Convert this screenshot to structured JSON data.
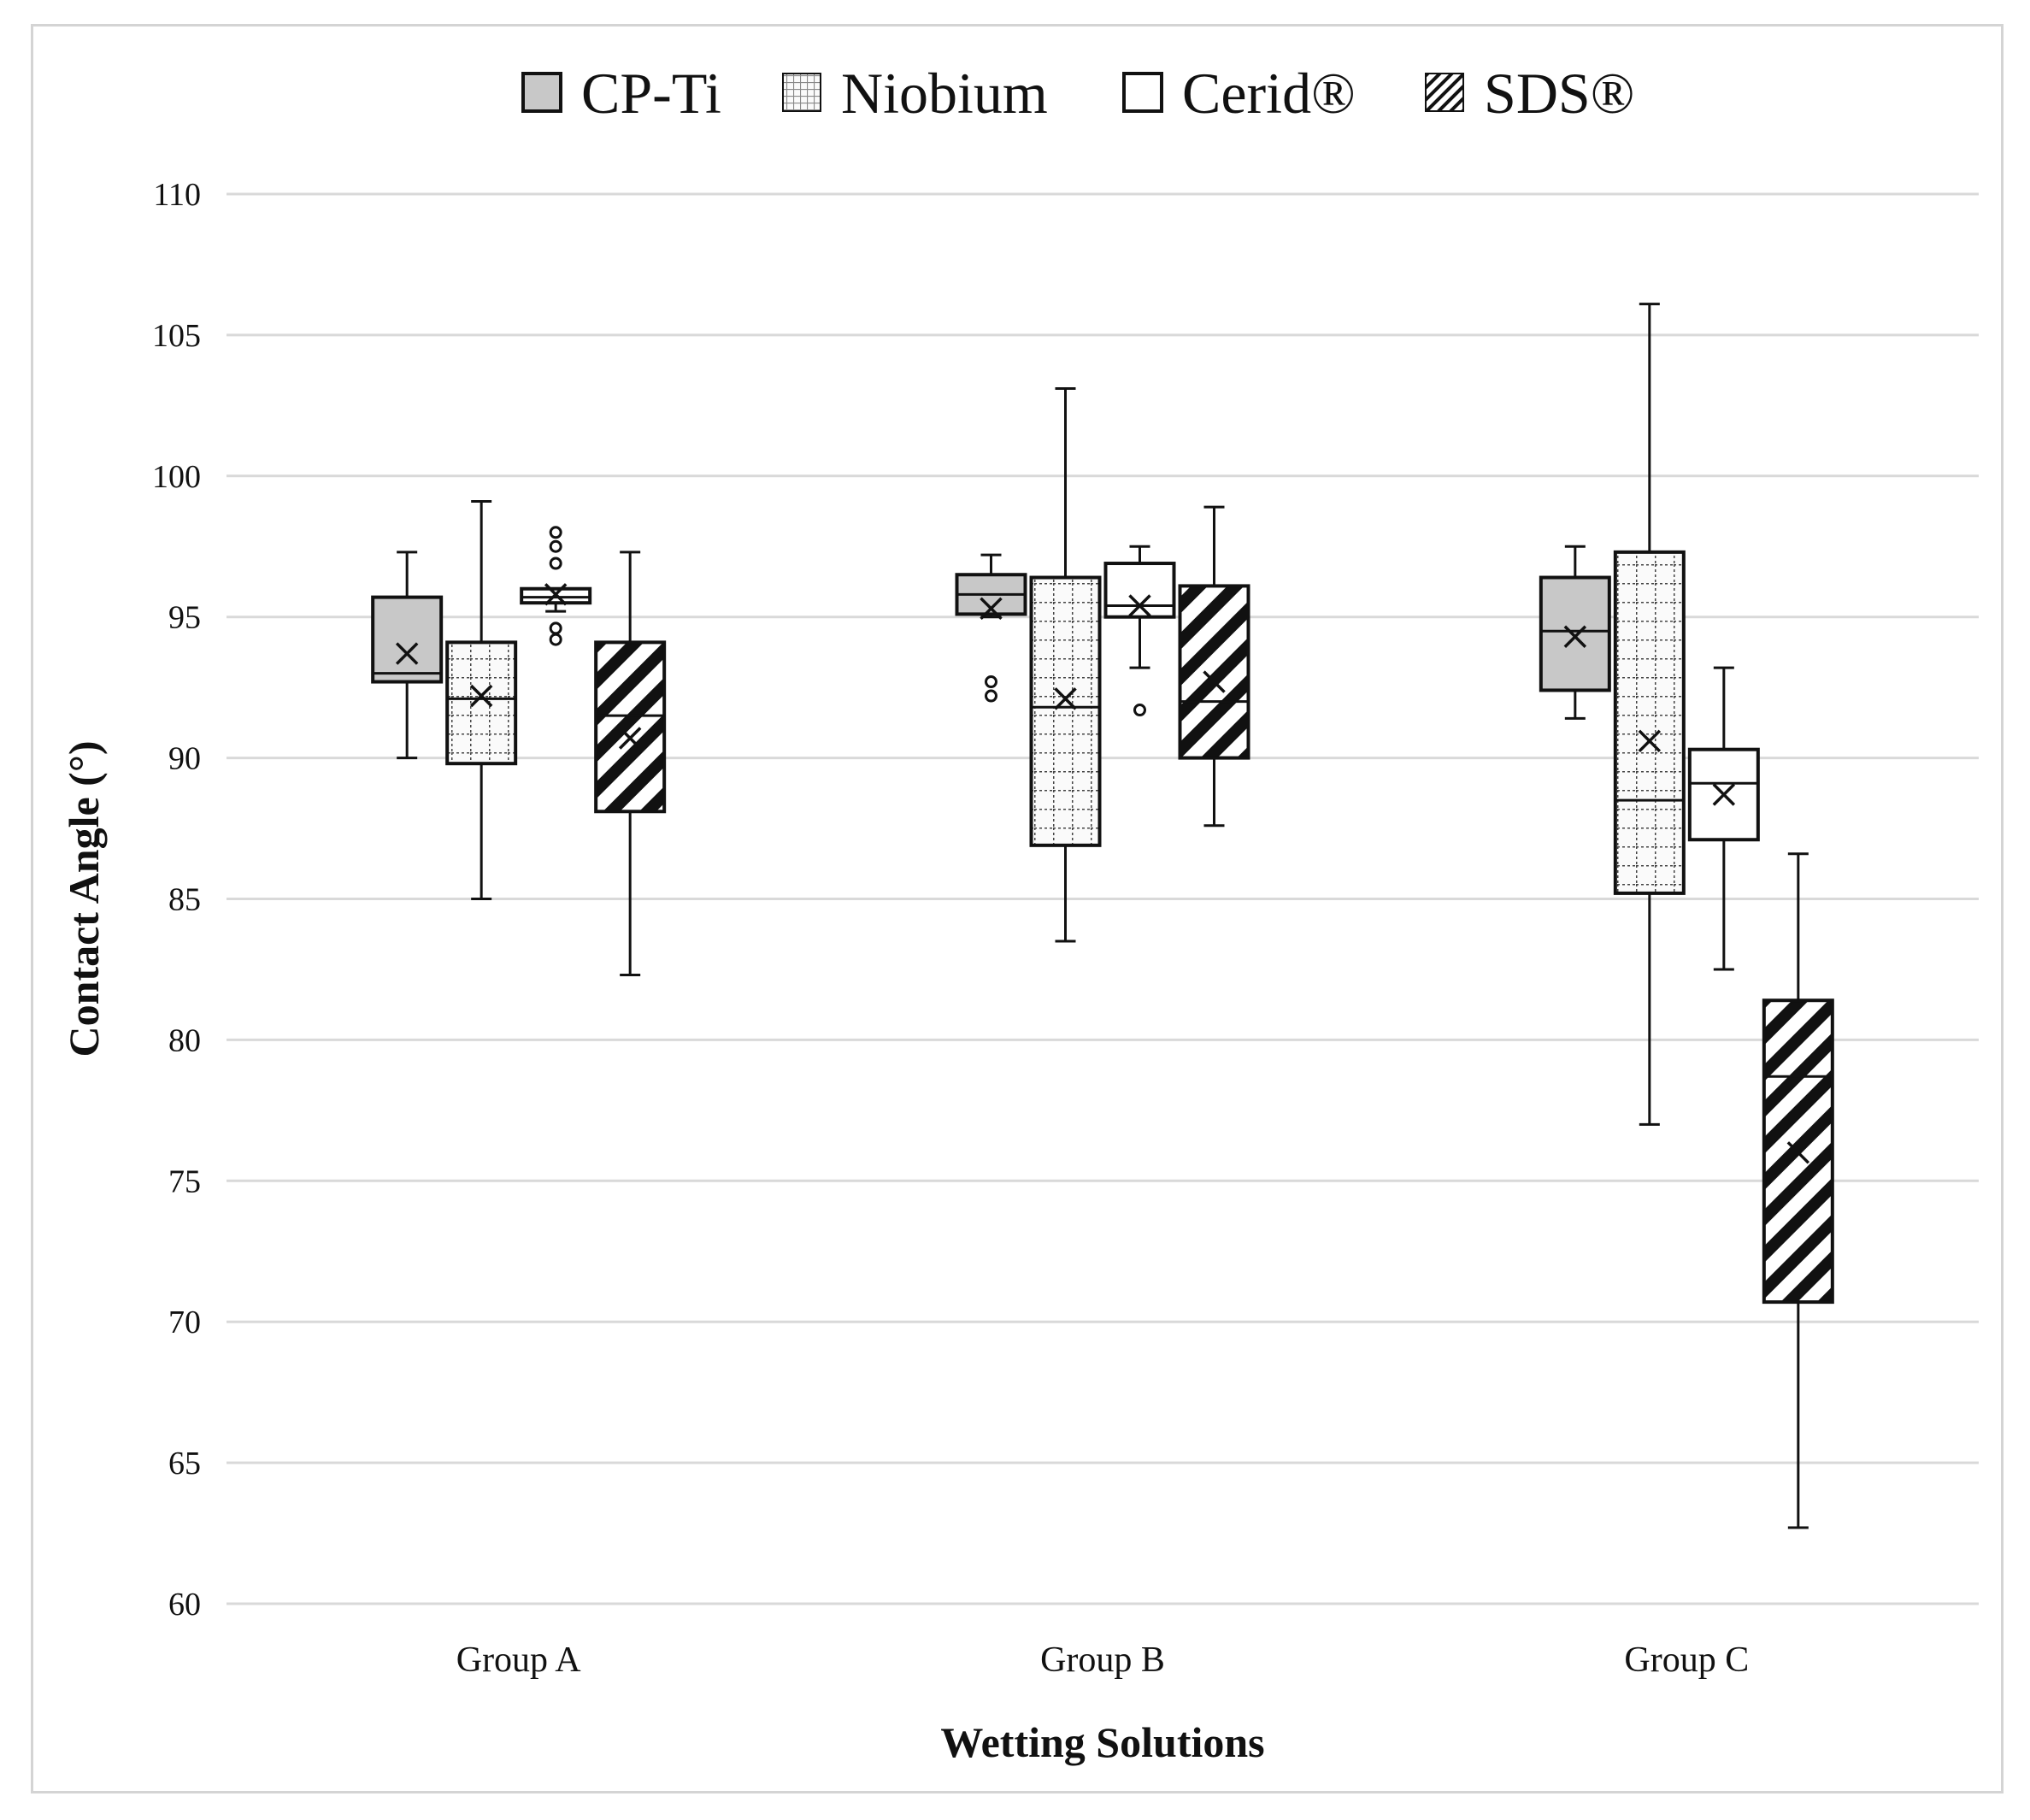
{
  "chart_data": {
    "type": "box",
    "xlabel": "Wetting Solutions",
    "ylabel": "Contact Angle (°)",
    "ylim": [
      60,
      110
    ],
    "yticks": [
      60,
      65,
      70,
      75,
      80,
      85,
      90,
      95,
      100,
      105,
      110
    ],
    "ytick_labels": [
      "60",
      "65",
      "70",
      "75",
      "80",
      "85",
      "90",
      "95",
      "100",
      "105",
      "110"
    ],
    "grid": true,
    "legend_position": "top",
    "categories": [
      "Group A",
      "Group B",
      "Group C"
    ],
    "series": [
      {
        "name": "CP-Ti",
        "pattern": "solid-gray",
        "color": "#c8c8c8",
        "boxes": [
          {
            "min": 90.0,
            "q1": 92.7,
            "median": 93.0,
            "q3": 95.7,
            "max": 97.3,
            "mean": 93.7,
            "outliers": []
          },
          {
            "min": 95.0,
            "q1": 95.1,
            "median": 95.8,
            "q3": 96.5,
            "max": 97.2,
            "mean": 95.3,
            "outliers": [
              92.2,
              92.7
            ]
          },
          {
            "min": 91.4,
            "q1": 92.4,
            "median": 94.5,
            "q3": 96.4,
            "max": 97.5,
            "mean": 94.3,
            "outliers": []
          }
        ]
      },
      {
        "name": "Niobium",
        "pattern": "dotted-grid",
        "color": "#f4f4f4",
        "boxes": [
          {
            "min": 85.0,
            "q1": 89.8,
            "median": 92.1,
            "q3": 94.1,
            "max": 99.1,
            "mean": 92.2,
            "outliers": []
          },
          {
            "min": 83.5,
            "q1": 86.9,
            "median": 91.8,
            "q3": 96.4,
            "max": 103.1,
            "mean": 92.1,
            "outliers": []
          },
          {
            "min": 77.0,
            "q1": 85.2,
            "median": 88.5,
            "q3": 97.3,
            "max": 106.1,
            "mean": 90.6,
            "outliers": []
          }
        ]
      },
      {
        "name": "Cerid®",
        "pattern": "white",
        "color": "#ffffff",
        "boxes": [
          {
            "min": 95.2,
            "q1": 95.5,
            "median": 95.7,
            "q3": 96.0,
            "max": 96.0,
            "mean": 95.8,
            "outliers": [
              94.2,
              94.6,
              96.9,
              97.5,
              98.0
            ]
          },
          {
            "min": 93.2,
            "q1": 95.0,
            "median": 95.4,
            "q3": 96.9,
            "max": 97.5,
            "mean": 95.4,
            "outliers": [
              91.7
            ]
          },
          {
            "min": 82.5,
            "q1": 87.1,
            "median": 89.1,
            "q3": 90.3,
            "max": 93.2,
            "mean": 88.7,
            "outliers": []
          }
        ]
      },
      {
        "name": "SDS®",
        "pattern": "diagonal-hatch",
        "color": "#ffffff",
        "boxes": [
          {
            "min": 82.3,
            "q1": 88.1,
            "median": 91.5,
            "q3": 94.1,
            "max": 97.3,
            "mean": 90.7,
            "outliers": []
          },
          {
            "min": 87.6,
            "q1": 90.0,
            "median": 92.0,
            "q3": 96.1,
            "max": 98.9,
            "mean": 92.7,
            "outliers": []
          },
          {
            "min": 62.7,
            "q1": 70.7,
            "median": 78.7,
            "q3": 81.4,
            "max": 86.6,
            "mean": 76.0,
            "outliers": []
          }
        ]
      }
    ]
  }
}
